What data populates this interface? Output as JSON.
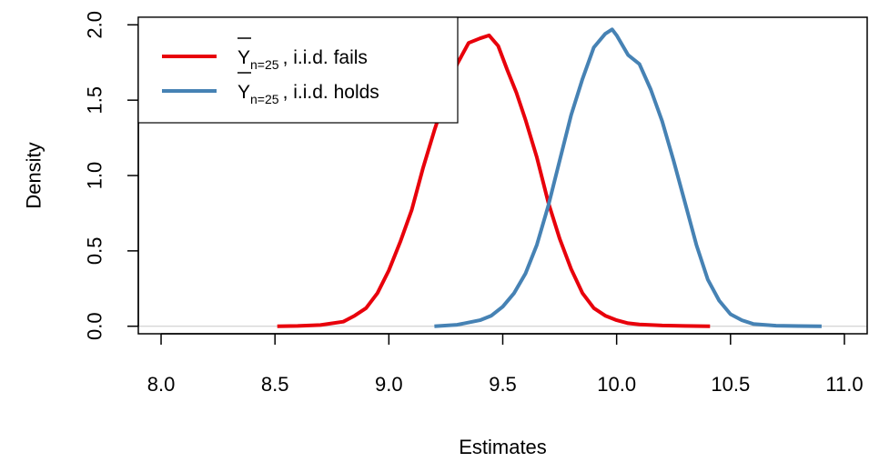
{
  "chart_data": {
    "type": "line",
    "title": "",
    "xlabel": "Estimates",
    "ylabel": "Density",
    "xlim": [
      7.9,
      11.1
    ],
    "ylim": [
      -0.05,
      2.05
    ],
    "x_ticks": [
      8.0,
      8.5,
      9.0,
      9.5,
      10.0,
      10.5,
      11.0
    ],
    "x_tick_labels": [
      "8.0",
      "8.5",
      "9.0",
      "9.5",
      "10.0",
      "10.5",
      "11.0"
    ],
    "y_ticks": [
      0.0,
      0.5,
      1.0,
      1.5,
      2.0
    ],
    "y_tick_labels": [
      "0.0",
      "0.5",
      "1.0",
      "1.5",
      "2.0"
    ],
    "grid": false,
    "baseline_y": 0,
    "legend": {
      "position": "top-left",
      "entries": [
        {
          "symbol": "Y",
          "subscript": "n=25",
          "text": ", i.i.d. fails",
          "color": "#e8000b"
        },
        {
          "symbol": "Y",
          "subscript": "n=25",
          "text": ", i.i.d. holds",
          "color": "#4682b4"
        }
      ]
    },
    "series": [
      {
        "color": "#e8000b",
        "x": [
          8.51,
          8.6,
          8.7,
          8.8,
          8.85,
          8.9,
          8.95,
          9.0,
          9.05,
          9.1,
          9.15,
          9.2,
          9.25,
          9.3,
          9.35,
          9.4,
          9.44,
          9.48,
          9.52,
          9.56,
          9.6,
          9.65,
          9.7,
          9.75,
          9.8,
          9.85,
          9.9,
          9.95,
          10.0,
          10.05,
          10.1,
          10.2,
          10.3,
          10.41
        ],
        "y": [
          0.0,
          0.002,
          0.008,
          0.03,
          0.07,
          0.12,
          0.22,
          0.37,
          0.56,
          0.77,
          1.05,
          1.3,
          1.53,
          1.74,
          1.88,
          1.91,
          1.93,
          1.86,
          1.7,
          1.55,
          1.37,
          1.12,
          0.82,
          0.58,
          0.38,
          0.22,
          0.12,
          0.07,
          0.04,
          0.02,
          0.012,
          0.005,
          0.002,
          0.0
        ]
      },
      {
        "color": "#4682b4",
        "x": [
          9.2,
          9.3,
          9.4,
          9.45,
          9.5,
          9.55,
          9.6,
          9.65,
          9.7,
          9.75,
          9.8,
          9.85,
          9.9,
          9.95,
          9.98,
          10.0,
          10.05,
          10.1,
          10.15,
          10.2,
          10.25,
          10.3,
          10.35,
          10.4,
          10.45,
          10.5,
          10.55,
          10.6,
          10.7,
          10.8,
          10.9
        ],
        "y": [
          0.0,
          0.01,
          0.04,
          0.07,
          0.13,
          0.22,
          0.35,
          0.54,
          0.8,
          1.1,
          1.4,
          1.64,
          1.85,
          1.94,
          1.97,
          1.93,
          1.8,
          1.74,
          1.57,
          1.36,
          1.1,
          0.82,
          0.54,
          0.31,
          0.17,
          0.08,
          0.04,
          0.015,
          0.004,
          0.001,
          0.0
        ]
      }
    ]
  }
}
